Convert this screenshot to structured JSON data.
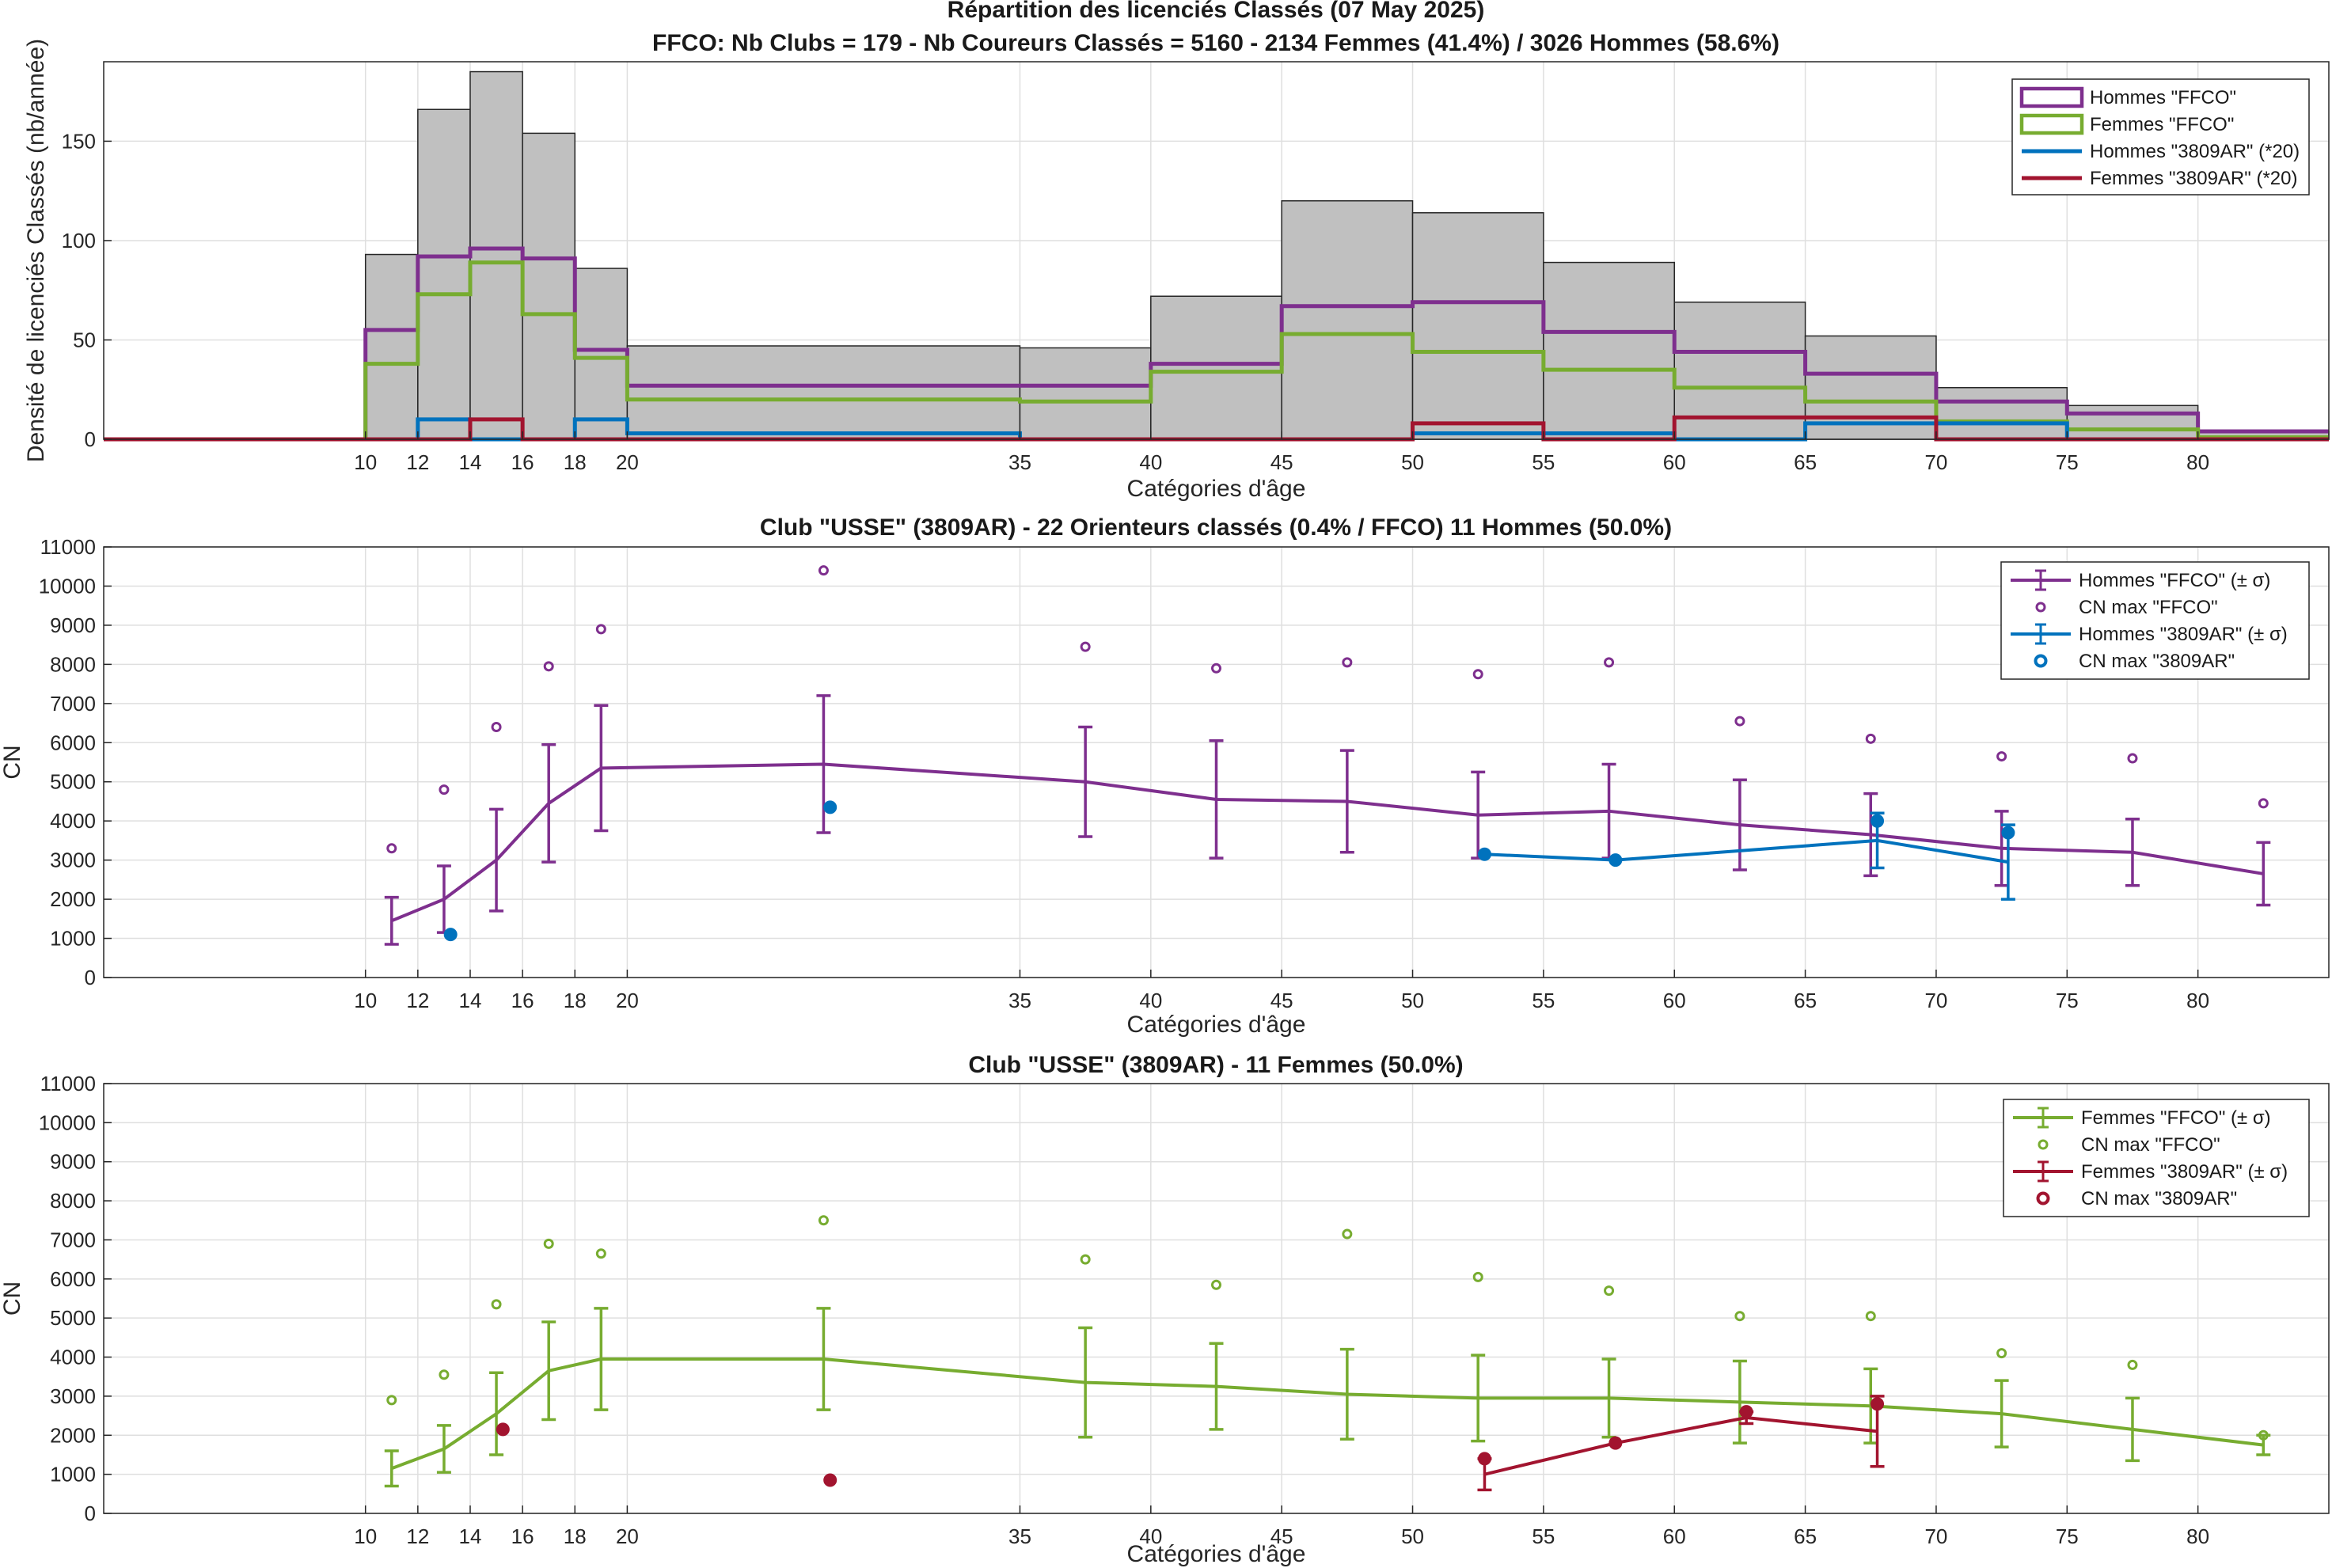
{
  "chart_data": [
    {
      "type": "bar",
      "title": "Répartition des licenciés Classés (07 May 2025)",
      "subtitle": "FFCO: Nb Clubs = 179   -   Nb Coureurs Classés = 5160   -   2134 Femmes (41.4%) / 3026 Hommes (58.6%)",
      "xlabel": "Catégories d'âge",
      "ylabel": "Densité de licenciés Classés (nb/année)",
      "xlim": [
        0,
        85
      ],
      "ylim": [
        0,
        190
      ],
      "xticks": [
        10,
        12,
        14,
        16,
        18,
        20,
        35,
        40,
        45,
        50,
        55,
        60,
        65,
        70,
        75,
        80
      ],
      "yticks": [
        0,
        50,
        100,
        150
      ],
      "bin_edges": [
        0,
        10,
        12,
        14,
        16,
        18,
        20,
        35,
        40,
        45,
        50,
        55,
        60,
        65,
        70,
        75,
        80,
        85
      ],
      "bars": [
        0,
        93,
        166,
        185,
        154,
        86,
        47,
        46,
        72,
        120,
        114,
        89,
        69,
        52,
        26,
        17,
        4
      ],
      "series": [
        {
          "name": "Hommes \"FFCO\"",
          "color": "#7e2f8e",
          "values": [
            0,
            55,
            92,
            96,
            91,
            45,
            27,
            27,
            38,
            67,
            69,
            54,
            44,
            33,
            19,
            13,
            4
          ]
        },
        {
          "name": "Femmes \"FFCO\"",
          "color": "#77ac30",
          "values": [
            0,
            38,
            73,
            89,
            63,
            41,
            20,
            19,
            34,
            53,
            44,
            35,
            26,
            19,
            9,
            5,
            1
          ]
        },
        {
          "name": "Hommes \"3809AR\" (*20)",
          "color": "#0072bd",
          "values": [
            0,
            0,
            10,
            0,
            0,
            10,
            3,
            0,
            0,
            0,
            3,
            3,
            0,
            8,
            8,
            0,
            0
          ]
        },
        {
          "name": "Femmes \"3809AR\" (*20)",
          "color": "#a2142f",
          "values": [
            0,
            0,
            0,
            10,
            0,
            0,
            0,
            0,
            0,
            0,
            8,
            0,
            11,
            11,
            0,
            0,
            0
          ]
        }
      ],
      "legend": "top-right",
      "grid": true
    },
    {
      "type": "line",
      "title": "Club \"USSE\" (3809AR)  -  22 Orienteurs classés (0.4% / FFCO)  11 Hommes (50.0%)",
      "xlabel": "Catégories d'âge",
      "ylabel": "CN",
      "xlim": [
        0,
        85
      ],
      "ylim": [
        0,
        11000
      ],
      "xticks": [
        10,
        12,
        14,
        16,
        18,
        20,
        35,
        40,
        45,
        50,
        55,
        60,
        65,
        70,
        75,
        80
      ],
      "yticks": [
        0,
        1000,
        2000,
        3000,
        4000,
        5000,
        6000,
        7000,
        8000,
        9000,
        10000,
        11000
      ],
      "legend": "top-right",
      "grid": true,
      "series": [
        {
          "name": "Hommes \"FFCO\" (± σ)",
          "color": "#7e2f8e",
          "kind": "errorbar",
          "x": [
            11,
            13,
            15,
            17,
            19,
            27.5,
            37.5,
            42.5,
            47.5,
            52.5,
            57.5,
            62.5,
            67.5,
            72.5,
            77.5,
            82.5
          ],
          "y": [
            1450,
            2000,
            3000,
            4450,
            5350,
            5450,
            5000,
            4550,
            4500,
            4150,
            4250,
            3900,
            3650,
            3300,
            3200,
            2650
          ],
          "err": [
            600,
            850,
            1300,
            1500,
            1600,
            1750,
            1400,
            1500,
            1300,
            1100,
            1200,
            1150,
            1050,
            950,
            850,
            800
          ]
        },
        {
          "name": "CN max \"FFCO\"",
          "color": "#7e2f8e",
          "kind": "marker",
          "x": [
            11,
            13,
            15,
            17,
            19,
            27.5,
            37.5,
            42.5,
            47.5,
            52.5,
            57.5,
            62.5,
            67.5,
            72.5,
            77.5,
            82.5
          ],
          "y": [
            3300,
            4800,
            6400,
            7950,
            8900,
            10400,
            8450,
            7900,
            8050,
            7750,
            8050,
            6550,
            6100,
            5650,
            5600,
            4450
          ]
        },
        {
          "name": "Hommes \"3809AR\" (± σ)",
          "color": "#0072bd",
          "kind": "errorbar",
          "x": [
            52.75,
            57.75,
            67.75,
            72.75
          ],
          "y": [
            3150,
            3000,
            3500,
            2950
          ],
          "err": [
            0,
            0,
            700,
            950
          ]
        },
        {
          "name": "CN max \"3809AR\"",
          "color": "#0072bd",
          "kind": "marker-filled",
          "x": [
            13.25,
            27.75,
            52.75,
            57.75,
            67.75,
            72.75
          ],
          "y": [
            1100,
            4350,
            3150,
            3000,
            4000,
            3700
          ]
        }
      ]
    },
    {
      "type": "line",
      "title": "Club \"USSE\" (3809AR)  -  11 Femmes (50.0%)",
      "xlabel": "Catégories d'âge",
      "ylabel": "CN",
      "xlim": [
        0,
        85
      ],
      "ylim": [
        0,
        11000
      ],
      "xticks": [
        10,
        12,
        14,
        16,
        18,
        20,
        35,
        40,
        45,
        50,
        55,
        60,
        65,
        70,
        75,
        80
      ],
      "yticks": [
        0,
        1000,
        2000,
        3000,
        4000,
        5000,
        6000,
        7000,
        8000,
        9000,
        10000,
        11000
      ],
      "legend": "top-right",
      "grid": true,
      "series": [
        {
          "name": "Femmes \"FFCO\" (± σ)",
          "color": "#77ac30",
          "kind": "errorbar",
          "x": [
            11,
            13,
            15,
            17,
            19,
            27.5,
            37.5,
            42.5,
            47.5,
            52.5,
            57.5,
            62.5,
            67.5,
            72.5,
            77.5,
            82.5
          ],
          "y": [
            1150,
            1650,
            2550,
            3650,
            3950,
            3950,
            3350,
            3250,
            3050,
            2950,
            2950,
            2850,
            2750,
            2550,
            2150,
            1750
          ],
          "err": [
            450,
            600,
            1050,
            1250,
            1300,
            1300,
            1400,
            1100,
            1150,
            1100,
            1000,
            1050,
            950,
            850,
            800,
            250
          ]
        },
        {
          "name": "CN max \"FFCO\"",
          "color": "#77ac30",
          "kind": "marker",
          "x": [
            11,
            13,
            15,
            17,
            19,
            27.5,
            37.5,
            42.5,
            47.5,
            52.5,
            57.5,
            62.5,
            67.5,
            72.5,
            77.5,
            82.5
          ],
          "y": [
            2900,
            3550,
            5350,
            6900,
            6650,
            7500,
            6500,
            5850,
            7150,
            6050,
            5700,
            5050,
            5050,
            4100,
            3800,
            2000
          ]
        },
        {
          "name": "Femmes \"3809AR\" (± σ)",
          "color": "#a2142f",
          "kind": "errorbar",
          "x": [
            52.75,
            57.75,
            62.75,
            67.75
          ],
          "y": [
            1000,
            1800,
            2450,
            2100
          ],
          "err": [
            400,
            0,
            150,
            900
          ]
        },
        {
          "name": "CN max \"3809AR\"",
          "color": "#a2142f",
          "kind": "marker-filled",
          "x": [
            15.25,
            27.75,
            52.75,
            57.75,
            62.75,
            67.75
          ],
          "y": [
            2150,
            850,
            1400,
            1800,
            2600,
            2800
          ]
        }
      ]
    }
  ]
}
